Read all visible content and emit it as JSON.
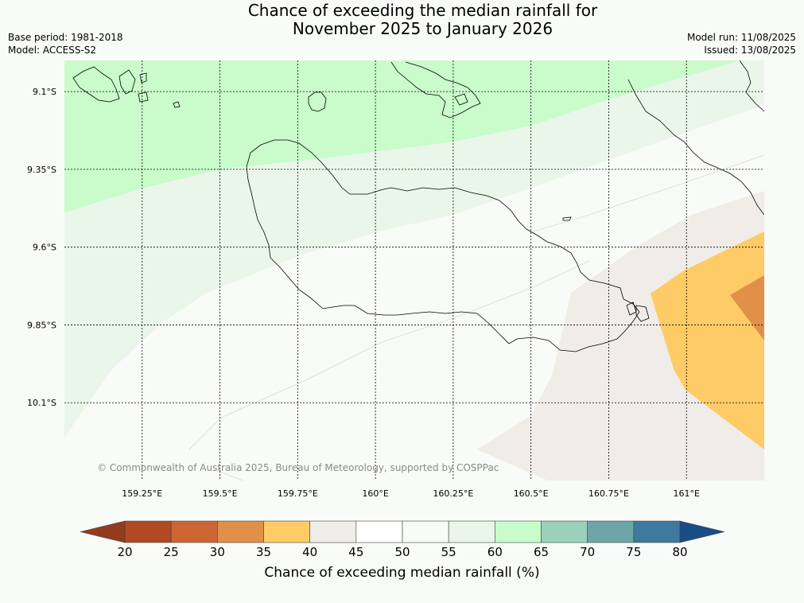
{
  "header": {
    "title_line1": "Chance of exceeding the median rainfall for",
    "title_line2": "November 2025 to January 2026",
    "base_period": "Base period: 1981-2018",
    "model": "Model: ACCESS-S2",
    "model_run": "Model run: 11/08/2025",
    "issued": "Issued: 13/08/2025"
  },
  "map": {
    "copyright": "© Commonwealth of Australia 2025, Bureau of Meteorology, supported by COSPPac"
  },
  "colorbar": {
    "label": "Chance of exceeding median rainfall (%)"
  },
  "chart_data": {
    "type": "heatmap",
    "title": "Chance of exceeding the median rainfall for November 2025 to January 2026",
    "x_axis": {
      "ticks": [
        159.25,
        159.5,
        159.75,
        160,
        160.25,
        160.5,
        160.75,
        161
      ],
      "tick_labels": [
        "159.25°E",
        "159.5°E",
        "159.75°E",
        "160°E",
        "160.25°E",
        "160.5°E",
        "160.75°E",
        "161°E"
      ],
      "range": [
        159.0,
        161.25
      ]
    },
    "y_axis": {
      "ticks": [
        -9.1,
        -9.35,
        -9.6,
        -9.85,
        -10.1
      ],
      "tick_labels": [
        "9.1°S",
        "9.35°S",
        "9.6°S",
        "9.85°S",
        "10.1°S"
      ],
      "range": [
        -10.35,
        -9.0
      ]
    },
    "grid": true,
    "colorbar": {
      "ticks": [
        20,
        25,
        30,
        35,
        40,
        45,
        50,
        55,
        60,
        65,
        70,
        75,
        80
      ],
      "bins": [
        {
          "from": 20,
          "to": 25,
          "color": "#b04a24"
        },
        {
          "from": 25,
          "to": 30,
          "color": "#cc6633"
        },
        {
          "from": 30,
          "to": 35,
          "color": "#e09048"
        },
        {
          "from": 35,
          "to": 40,
          "color": "#fecb66"
        },
        {
          "from": 40,
          "to": 45,
          "color": "#f0ede8"
        },
        {
          "from": 45,
          "to": 50,
          "color": "#ffffff"
        },
        {
          "from": 50,
          "to": 55,
          "color": "#f9fbf8"
        },
        {
          "from": 55,
          "to": 60,
          "color": "#eaf6ea"
        },
        {
          "from": 60,
          "to": 65,
          "color": "#c9fbcb"
        },
        {
          "from": 65,
          "to": 70,
          "color": "#9ad1bc"
        },
        {
          "from": 70,
          "to": 75,
          "color": "#6ea6a7"
        },
        {
          "from": 75,
          "to": 80,
          "color": "#3f7a9e"
        }
      ],
      "under_color": "#943a1e",
      "over_color": "#184d86"
    }
  }
}
